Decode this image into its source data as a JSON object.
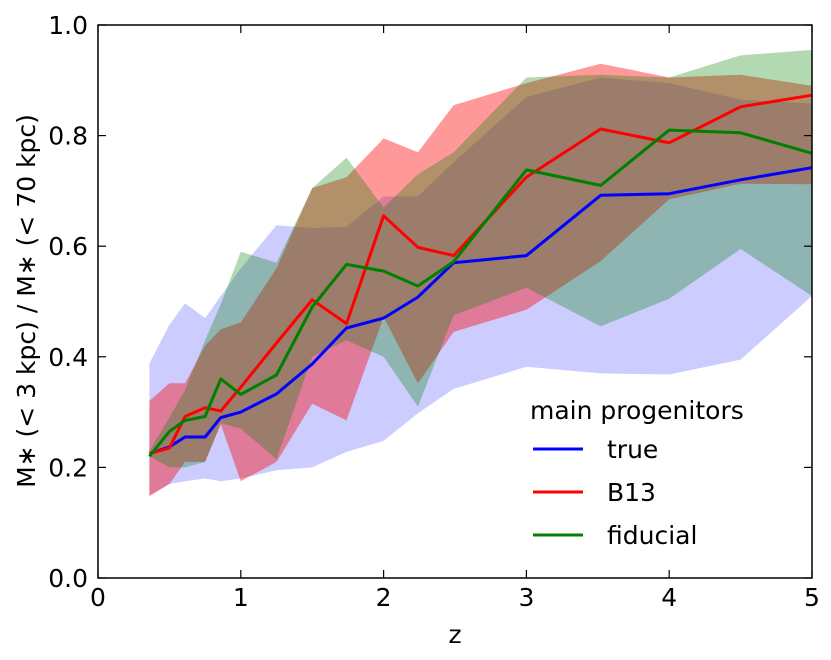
{
  "chart_data": {
    "type": "line",
    "title": "",
    "xlabel": "z",
    "ylabel": "M∗ (< 3 kpc) / M∗ (< 70 kpc)",
    "xlim": [
      0,
      5
    ],
    "ylim": [
      0.0,
      1.0
    ],
    "xticks": [
      0,
      1,
      2,
      3,
      4,
      5
    ],
    "xtick_labels": [
      "0",
      "1",
      "2",
      "3",
      "4",
      "5"
    ],
    "yticks": [
      0.0,
      0.2,
      0.4,
      0.6,
      0.8,
      1.0
    ],
    "ytick_labels": [
      "0.0",
      "0.2",
      "0.4",
      "0.6",
      "0.8",
      "1.0"
    ],
    "grid": false,
    "legend": {
      "title": "main progenitors",
      "placement": "lower-right",
      "entries": [
        "true",
        "B13",
        "fiducial"
      ]
    },
    "series": [
      {
        "name": "true",
        "color": "#0000ff",
        "band_color": "#0000ff",
        "band_opacity": 0.2,
        "x": [
          0.36,
          0.5,
          0.61,
          0.75,
          0.86,
          1.0,
          1.25,
          1.5,
          1.74,
          2.0,
          2.24,
          2.49,
          3.0,
          3.52,
          4.0,
          4.5,
          5.0
        ],
        "y": [
          0.225,
          0.237,
          0.255,
          0.255,
          0.29,
          0.3,
          0.333,
          0.387,
          0.452,
          0.47,
          0.508,
          0.57,
          0.583,
          0.692,
          0.695,
          0.72,
          0.742
        ],
        "y_upper": [
          0.388,
          0.458,
          0.497,
          0.47,
          0.51,
          0.56,
          0.638,
          0.633,
          0.635,
          0.69,
          0.69,
          0.752,
          0.87,
          0.905,
          0.895,
          0.865,
          0.858
        ],
        "y_lower": [
          0.15,
          0.17,
          0.175,
          0.18,
          0.175,
          0.18,
          0.195,
          0.2,
          0.228,
          0.248,
          0.298,
          0.342,
          0.382,
          0.37,
          0.368,
          0.395,
          0.51
        ]
      },
      {
        "name": "B13",
        "color": "#ff0000",
        "band_color": "#ff0000",
        "band_opacity": 0.4,
        "x": [
          0.36,
          0.5,
          0.61,
          0.75,
          0.86,
          1.0,
          1.25,
          1.5,
          1.74,
          2.0,
          2.24,
          2.49,
          3.0,
          3.52,
          4.0,
          4.5,
          5.0
        ],
        "y": [
          0.225,
          0.235,
          0.292,
          0.308,
          0.302,
          0.345,
          0.425,
          0.503,
          0.46,
          0.655,
          0.598,
          0.583,
          0.725,
          0.812,
          0.787,
          0.852,
          0.873
        ],
        "y_upper": [
          0.32,
          0.352,
          0.352,
          0.42,
          0.45,
          0.462,
          0.56,
          0.705,
          0.725,
          0.795,
          0.77,
          0.855,
          0.895,
          0.93,
          0.905,
          0.91,
          0.89
        ],
        "y_lower": [
          0.148,
          0.17,
          0.21,
          0.21,
          0.278,
          0.175,
          0.21,
          0.315,
          0.285,
          0.472,
          0.352,
          0.445,
          0.485,
          0.573,
          0.685,
          0.713,
          0.712
        ]
      },
      {
        "name": "fiducial",
        "color": "#008000",
        "band_color": "#008000",
        "band_opacity": 0.3,
        "x": [
          0.36,
          0.5,
          0.61,
          0.75,
          0.86,
          1.0,
          1.25,
          1.5,
          1.74,
          2.0,
          2.24,
          2.49,
          3.0,
          3.52,
          4.0,
          4.5,
          5.0
        ],
        "y": [
          0.22,
          0.265,
          0.285,
          0.292,
          0.36,
          0.332,
          0.367,
          0.49,
          0.567,
          0.555,
          0.528,
          0.572,
          0.738,
          0.71,
          0.81,
          0.805,
          0.768
        ],
        "y_upper": [
          0.23,
          0.29,
          0.34,
          0.43,
          0.495,
          0.59,
          0.57,
          0.705,
          0.76,
          0.67,
          0.73,
          0.77,
          0.905,
          0.91,
          0.905,
          0.945,
          0.955
        ],
        "y_lower": [
          0.22,
          0.2,
          0.2,
          0.21,
          0.28,
          0.27,
          0.215,
          0.4,
          0.43,
          0.4,
          0.31,
          0.475,
          0.525,
          0.455,
          0.505,
          0.595,
          0.51
        ]
      }
    ]
  }
}
